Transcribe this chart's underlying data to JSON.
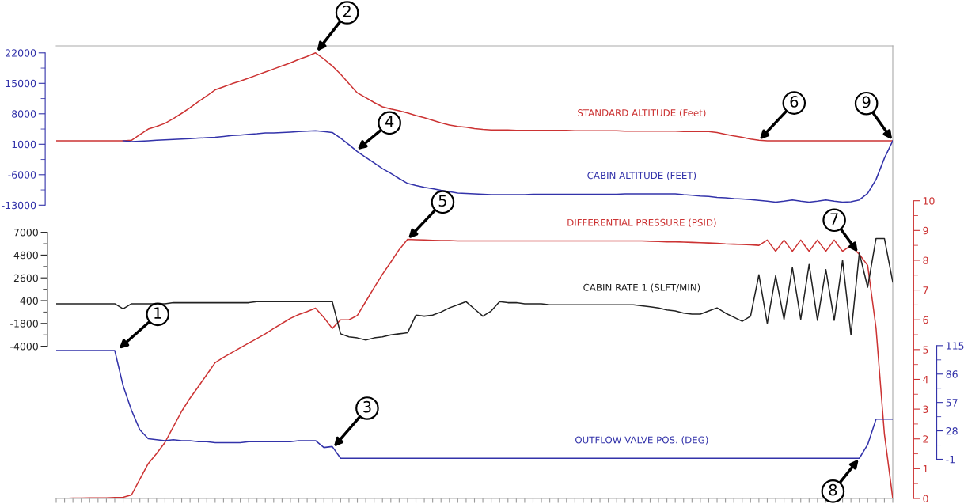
{
  "chart_data": [
    {
      "type": "line",
      "tick_labels": "y",
      "grid": false,
      "legend": false,
      "categories": [
        null,
        null,
        null,
        null,
        null,
        null,
        null,
        null,
        null,
        null,
        null,
        null,
        null,
        null,
        null,
        null,
        null,
        null,
        null,
        null,
        null,
        null,
        null,
        null,
        null,
        null,
        null,
        null,
        null,
        null,
        null,
        null,
        null,
        null,
        null,
        null,
        null,
        null,
        null,
        null,
        null,
        null,
        null,
        null,
        null,
        null,
        null,
        null,
        null,
        null,
        null,
        null,
        null,
        null,
        null,
        null,
        null,
        null,
        null,
        null,
        null,
        null,
        null,
        null,
        null,
        null,
        null,
        null,
        null,
        null,
        null,
        null,
        null,
        null,
        null,
        null,
        null,
        null,
        null,
        null,
        null,
        null,
        null,
        null,
        null,
        null,
        null,
        null,
        null,
        null,
        null,
        null,
        null,
        null,
        null,
        null,
        null,
        null,
        null,
        null,
        null
      ],
      "ylim": [
        -80400,
        23600
      ],
      "yticks": [
        -13000,
        -6000,
        1000,
        8000,
        15000,
        22000
      ],
      "series": [
        {
          "name": "STANDARD ALTITUDE (Feet)",
          "color": "#cc3333",
          "values": [
            1800,
            1800,
            1800,
            1800,
            1800,
            1800,
            1800,
            1800,
            1800,
            1900,
            3200,
            4500,
            5100,
            5800,
            6900,
            8100,
            9400,
            10800,
            12100,
            13500,
            14200,
            14900,
            15500,
            16200,
            16900,
            17600,
            18300,
            19000,
            19700,
            20500,
            21200,
            22000,
            20600,
            19000,
            17100,
            14900,
            12800,
            11700,
            10600,
            9600,
            9100,
            8700,
            8200,
            7600,
            7100,
            6500,
            5900,
            5400,
            5100,
            4900,
            4600,
            4400,
            4300,
            4300,
            4300,
            4200,
            4200,
            4200,
            4200,
            4200,
            4200,
            4200,
            4100,
            4100,
            4100,
            4100,
            4100,
            4100,
            4000,
            4000,
            4000,
            4000,
            4000,
            4000,
            4000,
            3900,
            3900,
            3900,
            3900,
            3700,
            3300,
            2900,
            2600,
            2200,
            1900,
            1800,
            1800,
            1800,
            1800,
            1800,
            1800,
            1800,
            1800,
            1800,
            1800,
            1800,
            1800,
            1800,
            1800,
            1800,
            1800
          ]
        },
        {
          "name": "CABIN ALTITUDE (FEET)",
          "color": "#3333aa",
          "values": [
            null,
            null,
            null,
            null,
            null,
            null,
            null,
            null,
            1800,
            1600,
            1700,
            1800,
            1900,
            2000,
            2100,
            2200,
            2300,
            2400,
            2500,
            2600,
            2800,
            3000,
            3100,
            3300,
            3400,
            3600,
            3600,
            3700,
            3800,
            3900,
            4000,
            4100,
            3900,
            3700,
            2400,
            900,
            -700,
            -2000,
            -3300,
            -4600,
            -5700,
            -6900,
            -8000,
            -8500,
            -8900,
            -9200,
            -9600,
            -9900,
            -10200,
            -10300,
            -10400,
            -10500,
            -10600,
            -10600,
            -10600,
            -10600,
            -10600,
            -10500,
            -10500,
            -10500,
            -10500,
            -10500,
            -10500,
            -10500,
            -10500,
            -10500,
            -10500,
            -10500,
            -10400,
            -10400,
            -10400,
            -10400,
            -10400,
            -10400,
            -10400,
            -10600,
            -10700,
            -10900,
            -11000,
            -11200,
            -11300,
            -11500,
            -11600,
            -11700,
            -11900,
            -12100,
            -12300,
            -12100,
            -11800,
            -12100,
            -12300,
            -12100,
            -11800,
            -12100,
            -12300,
            -12200,
            -11800,
            -10300,
            -7100,
            -2200,
            1800
          ]
        }
      ],
      "annotations": [
        "2",
        "4",
        {
          "text": "6",
          "y": 1900
        },
        {
          "text": "9",
          "y": 1800
        }
      ]
    },
    {
      "type": "line",
      "tick_labels": "y",
      "grid": false,
      "legend": false,
      "categories": [
        null,
        null,
        null,
        null,
        null,
        null,
        null,
        null,
        null,
        null,
        null,
        null,
        null,
        null,
        null,
        null,
        null,
        null,
        null,
        null,
        null,
        null,
        null,
        null,
        null,
        null,
        null,
        null,
        null,
        null,
        null,
        null,
        null,
        null,
        null,
        null,
        null,
        null,
        null,
        null,
        null,
        null,
        null,
        null,
        null,
        null,
        null,
        null,
        null,
        null,
        null,
        null,
        null,
        null,
        null,
        null,
        null,
        null,
        null,
        null,
        null,
        null,
        null,
        null,
        null,
        null,
        null,
        null,
        null,
        null,
        null,
        null,
        null,
        null,
        null,
        null,
        null,
        null,
        null,
        null,
        null,
        null,
        null,
        null,
        null,
        null,
        null,
        null,
        null,
        null,
        null,
        null,
        null,
        null,
        null,
        null,
        null,
        null,
        null,
        null,
        null
      ],
      "ylim": [
        0,
        15.2
      ],
      "yticks": [
        0,
        1,
        2,
        3,
        4,
        5,
        6,
        7,
        8,
        9,
        10
      ],
      "series": [
        {
          "name": "DIFFERENTIAL PRESSURE (PSID)",
          "color": "#cc3333",
          "values": [
            0,
            0,
            0.01,
            0.01,
            0.02,
            0.02,
            0.02,
            0.03,
            0.04,
            0.12,
            0.65,
            1.17,
            1.51,
            1.88,
            2.41,
            2.93,
            3.37,
            3.76,
            4.16,
            4.56,
            4.74,
            4.9,
            5.06,
            5.22,
            5.37,
            5.53,
            5.71,
            5.88,
            6.05,
            6.18,
            6.28,
            6.39,
            6.08,
            5.71,
            6.0,
            6.0,
            6.15,
            6.61,
            7.08,
            7.53,
            7.94,
            8.36,
            8.7,
            8.69,
            8.68,
            8.67,
            8.66,
            8.66,
            8.65,
            8.65,
            8.65,
            8.65,
            8.65,
            8.65,
            8.65,
            8.65,
            8.65,
            8.65,
            8.65,
            8.65,
            8.65,
            8.65,
            8.65,
            8.65,
            8.65,
            8.65,
            8.65,
            8.65,
            8.65,
            8.65,
            8.65,
            8.64,
            8.63,
            8.62,
            8.62,
            8.61,
            8.6,
            8.59,
            8.58,
            8.57,
            8.55,
            8.54,
            8.53,
            8.52,
            8.5,
            8.68,
            8.3,
            8.68,
            8.3,
            8.68,
            8.3,
            8.68,
            8.3,
            8.68,
            8.3,
            8.5,
            8.2,
            7.83,
            5.72,
            2.16,
            0
          ]
        }
      ],
      "annotations": [
        {
          "text": "5",
          "y": 8.7
        },
        "7"
      ]
    },
    {
      "type": "line",
      "tick_labels": "y",
      "grid": false,
      "legend": false,
      "categories": [
        null,
        null,
        null,
        null,
        null,
        null,
        null,
        null,
        null,
        null,
        null,
        null,
        null,
        null,
        null,
        null,
        null,
        null,
        null,
        null,
        null,
        null,
        null,
        null,
        null,
        null,
        null,
        null,
        null,
        null,
        null,
        null,
        null,
        null,
        null,
        null,
        null,
        null,
        null,
        null,
        null,
        null,
        null,
        null,
        null,
        null,
        null,
        null,
        null,
        null,
        null,
        null,
        null,
        null,
        null,
        null,
        null,
        null,
        null,
        null,
        null,
        null,
        null,
        null,
        null,
        null,
        null,
        null,
        null,
        null,
        null,
        null,
        null,
        null,
        null,
        null,
        null,
        null,
        null,
        null,
        null,
        null,
        null,
        null,
        null,
        null,
        null,
        null,
        null,
        null,
        null,
        null,
        null,
        null,
        null,
        null,
        null,
        null,
        null,
        null,
        null
      ],
      "ylim": [
        -18700,
        25000
      ],
      "yticks": [
        -4000,
        -1800,
        400,
        2600,
        4800,
        7000
      ],
      "series": [
        {
          "name": "CABIN RATE 1 (SLFT/MIN)",
          "color": "#222222",
          "values": [
            100,
            100,
            100,
            100,
            100,
            100,
            100,
            100,
            -400,
            100,
            100,
            100,
            100,
            100,
            200,
            200,
            200,
            200,
            200,
            200,
            200,
            200,
            200,
            200,
            300,
            300,
            300,
            300,
            300,
            300,
            300,
            300,
            300,
            300,
            -2800,
            -3100,
            -3200,
            -3400,
            -3200,
            -3100,
            -2900,
            -2800,
            -2700,
            -1000,
            -1100,
            -1000,
            -700,
            -300,
            0,
            300,
            -400,
            -1100,
            -600,
            300,
            200,
            200,
            100,
            100,
            100,
            0,
            0,
            0,
            0,
            0,
            0,
            0,
            0,
            0,
            0,
            0,
            -100,
            -200,
            -300,
            -500,
            -600,
            -800,
            -900,
            -900,
            -600,
            -300,
            -800,
            -1200,
            -1600,
            -1100,
            2900,
            -1800,
            2800,
            -1400,
            3600,
            -1400,
            3900,
            -1500,
            3400,
            -1500,
            4300,
            -2900,
            5000,
            1700,
            6400,
            6400,
            2200
          ]
        }
      ]
    },
    {
      "type": "line",
      "tick_labels": "y",
      "grid": false,
      "legend": false,
      "categories": [
        null,
        null,
        null,
        null,
        null,
        null,
        null,
        null,
        null,
        null,
        null,
        null,
        null,
        null,
        null,
        null,
        null,
        null,
        null,
        null,
        null,
        null,
        null,
        null,
        null,
        null,
        null,
        null,
        null,
        null,
        null,
        null,
        null,
        null,
        null,
        null,
        null,
        null,
        null,
        null,
        null,
        null,
        null,
        null,
        null,
        null,
        null,
        null,
        null,
        null,
        null,
        null,
        null,
        null,
        null,
        null,
        null,
        null,
        null,
        null,
        null,
        null,
        null,
        null,
        null,
        null,
        null,
        null,
        null,
        null,
        null,
        null,
        null,
        null,
        null,
        null,
        null,
        null,
        null,
        null,
        null,
        null,
        null,
        null,
        null,
        null,
        null,
        null,
        null,
        null,
        null,
        null,
        null,
        null,
        null,
        null,
        null,
        null,
        null,
        null,
        null
      ],
      "ylim": [
        -41,
        421
      ],
      "yticks": [
        -1,
        28,
        57,
        86,
        115
      ],
      "series": [
        {
          "name": "OUTFLOW VALVE POS. (DEG)",
          "color": "#3333aa",
          "values": [
            110,
            110,
            110,
            110,
            110,
            110,
            110,
            110,
            74,
            49,
            29,
            20,
            19,
            18,
            19,
            18,
            18,
            17,
            17,
            16,
            16,
            16,
            16,
            17,
            17,
            17,
            17,
            17,
            17,
            18,
            18,
            18,
            11,
            12,
            0,
            0,
            0,
            0,
            0,
            0,
            0,
            0,
            0,
            0,
            0,
            0,
            0,
            0,
            0,
            0,
            0,
            0,
            0,
            0,
            0,
            0,
            0,
            0,
            0,
            0,
            0,
            0,
            0,
            0,
            0,
            0,
            0,
            0,
            0,
            0,
            0,
            0,
            0,
            0,
            0,
            0,
            0,
            0,
            0,
            0,
            0,
            0,
            0,
            0,
            0,
            0,
            0,
            0,
            0,
            0,
            0,
            0,
            0,
            0,
            0,
            0,
            0,
            14,
            40,
            40,
            40
          ]
        }
      ],
      "annotations": [
        "1",
        "3",
        {
          "text": "8",
          "y": 0
        }
      ]
    }
  ]
}
